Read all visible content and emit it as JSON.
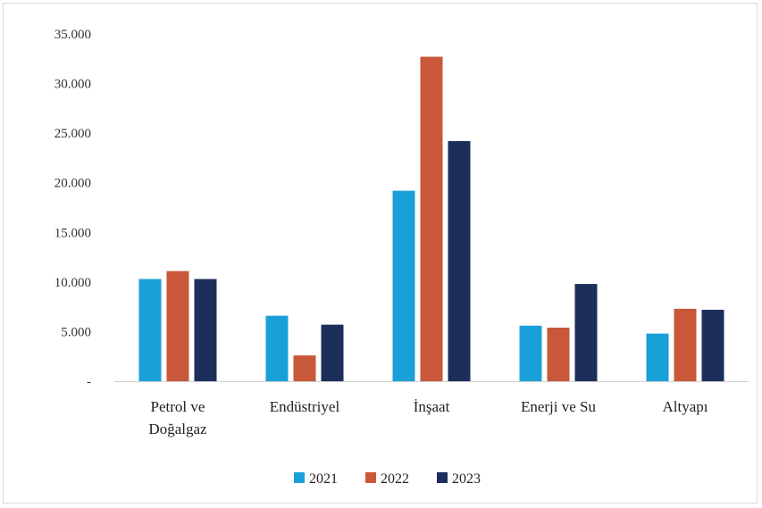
{
  "chart_data": {
    "type": "bar",
    "title": "",
    "xlabel": "",
    "ylabel": "",
    "categories": [
      [
        "Petrol ve",
        "Doğalgaz"
      ],
      [
        "Endüstriyel"
      ],
      [
        "İnşaat"
      ],
      [
        "Enerji ve Su"
      ],
      [
        "Altyapı"
      ]
    ],
    "series": [
      {
        "name": "2021",
        "color": "#1aa0d8",
        "values": [
          10300,
          6600,
          19200,
          5600,
          4800
        ]
      },
      {
        "name": "2022",
        "color": "#c9573a",
        "values": [
          11100,
          2600,
          32700,
          5400,
          7300
        ]
      },
      {
        "name": "2023",
        "color": "#1c2f5b",
        "values": [
          10300,
          5700,
          24200,
          9800,
          7200
        ]
      }
    ],
    "ylim": [
      0,
      35000
    ],
    "yticks": [
      0,
      5000,
      10000,
      15000,
      20000,
      25000,
      30000,
      35000
    ],
    "ytick_labels": [
      "-",
      "5.000",
      "10.000",
      "15.000",
      "20.000",
      "25.000",
      "30.000",
      "35.000"
    ],
    "grid": false,
    "legend_position": "bottom"
  }
}
